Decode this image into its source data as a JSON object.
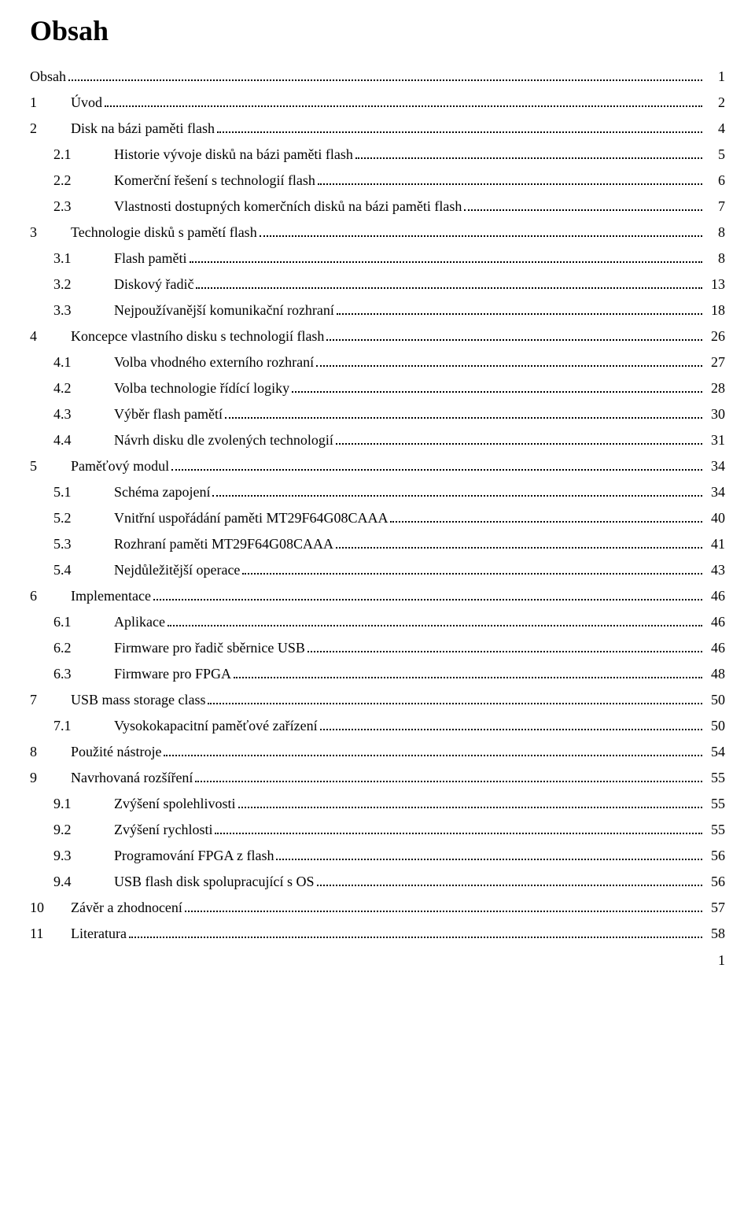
{
  "title": "Obsah",
  "page_number": "1",
  "font_family": "Times New Roman",
  "title_fontsize": 36,
  "body_fontsize": 18,
  "text_color": "#000000",
  "background_color": "#ffffff",
  "toc": [
    {
      "level": 0,
      "num": "",
      "label": "Obsah",
      "page": "1"
    },
    {
      "level": 0,
      "num": "1",
      "label": "Úvod",
      "page": "2"
    },
    {
      "level": 0,
      "num": "2",
      "label": "Disk na bázi paměti flash",
      "page": "4"
    },
    {
      "level": 1,
      "num": "2.1",
      "label": "Historie vývoje disků na bázi paměti flash",
      "page": "5"
    },
    {
      "level": 1,
      "num": "2.2",
      "label": "Komerční řešení s technologií flash",
      "page": "6"
    },
    {
      "level": 1,
      "num": "2.3",
      "label": "Vlastnosti dostupných komerčních disků na bázi paměti flash",
      "page": "7"
    },
    {
      "level": 0,
      "num": "3",
      "label": "Technologie disků s pamětí flash",
      "page": "8"
    },
    {
      "level": 1,
      "num": "3.1",
      "label": "Flash paměti",
      "page": "8"
    },
    {
      "level": 1,
      "num": "3.2",
      "label": "Diskový řadič",
      "page": "13"
    },
    {
      "level": 1,
      "num": "3.3",
      "label": "Nejpoužívanější komunikační rozhraní",
      "page": "18"
    },
    {
      "level": 0,
      "num": "4",
      "label": "Koncepce vlastního disku s technologií flash",
      "page": "26"
    },
    {
      "level": 1,
      "num": "4.1",
      "label": "Volba vhodného externího rozhraní",
      "page": "27"
    },
    {
      "level": 1,
      "num": "4.2",
      "label": "Volba technologie řídící logiky",
      "page": "28"
    },
    {
      "level": 1,
      "num": "4.3",
      "label": "Výběr flash pamětí",
      "page": "30"
    },
    {
      "level": 1,
      "num": "4.4",
      "label": "Návrh disku dle zvolených technologií",
      "page": "31"
    },
    {
      "level": 0,
      "num": "5",
      "label": "Paměťový modul",
      "page": "34"
    },
    {
      "level": 1,
      "num": "5.1",
      "label": "Schéma zapojení",
      "page": "34"
    },
    {
      "level": 1,
      "num": "5.2",
      "label": "Vnitřní uspořádání paměti MT29F64G08CAAA",
      "page": "40"
    },
    {
      "level": 1,
      "num": "5.3",
      "label": "Rozhraní paměti MT29F64G08CAAA",
      "page": "41"
    },
    {
      "level": 1,
      "num": "5.4",
      "label": "Nejdůležitější operace",
      "page": "43"
    },
    {
      "level": 0,
      "num": "6",
      "label": "Implementace",
      "page": "46"
    },
    {
      "level": 1,
      "num": "6.1",
      "label": "Aplikace",
      "page": "46"
    },
    {
      "level": 1,
      "num": "6.2",
      "label": "Firmware pro řadič sběrnice USB",
      "page": "46"
    },
    {
      "level": 1,
      "num": "6.3",
      "label": "Firmware pro FPGA",
      "page": "48"
    },
    {
      "level": 0,
      "num": "7",
      "label": "USB mass storage class",
      "page": "50"
    },
    {
      "level": 1,
      "num": "7.1",
      "label": "Vysokokapacitní paměťové zařízení",
      "page": "50"
    },
    {
      "level": 0,
      "num": "8",
      "label": "Použité nástroje",
      "page": "54"
    },
    {
      "level": 0,
      "num": "9",
      "label": "Navrhovaná rozšíření",
      "page": "55"
    },
    {
      "level": 1,
      "num": "9.1",
      "label": "Zvýšení spolehlivosti",
      "page": "55"
    },
    {
      "level": 1,
      "num": "9.2",
      "label": "Zvýšení rychlosti",
      "page": "55"
    },
    {
      "level": 1,
      "num": "9.3",
      "label": "Programování FPGA z flash",
      "page": "56"
    },
    {
      "level": 1,
      "num": "9.4",
      "label": "USB flash disk spolupracující s OS",
      "page": "56"
    },
    {
      "level": 0,
      "num": "10",
      "label": "Závěr a zhodnocení",
      "page": "57"
    },
    {
      "level": 0,
      "num": "11",
      "label": "Literatura",
      "page": "58"
    }
  ]
}
